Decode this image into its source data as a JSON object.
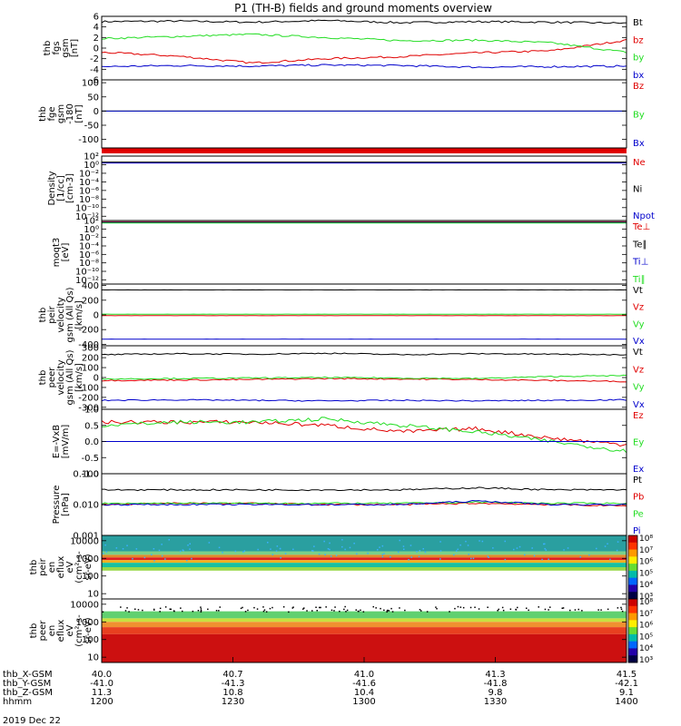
{
  "title": "P1 (TH-B) fields and ground moments overview",
  "date_label": "2019 Dec 22",
  "colors": {
    "black": "#000000",
    "red": "#e00000",
    "green": "#22dd22",
    "blue": "#0000cc"
  },
  "chart_data": [
    {
      "id": "p1",
      "type": "line",
      "ylabel": [
        "thb",
        "fgs",
        "gsm",
        "[nT]"
      ],
      "ylim": [
        -6,
        6
      ],
      "ticks": [
        6,
        4,
        2,
        0,
        -2,
        -4,
        -6
      ],
      "tick_labels": [
        "6",
        "4",
        "2",
        "0",
        "-2",
        "-4",
        "-6"
      ],
      "series": [
        {
          "name": "Bt",
          "color": "black",
          "values": [
            5.0,
            5.1,
            4.9,
            5.2,
            4.8,
            5.0,
            4.9,
            4.7
          ]
        },
        {
          "name": "bz",
          "color": "red",
          "values": [
            -0.8,
            -1.5,
            -2.8,
            -2.0,
            -1.6,
            -0.9,
            -0.5,
            1.5
          ]
        },
        {
          "name": "by",
          "color": "green",
          "values": [
            1.8,
            2.2,
            2.6,
            2.0,
            1.4,
            1.5,
            1.0,
            -0.8
          ]
        },
        {
          "name": "bx",
          "color": "blue",
          "values": [
            -3.5,
            -3.3,
            -3.4,
            -3.2,
            -3.3,
            -3.6,
            -3.5,
            -3.4
          ]
        }
      ]
    },
    {
      "id": "p2",
      "type": "line",
      "ylabel": [
        "thb",
        "fge",
        "gsm",
        "-180",
        "[nT]"
      ],
      "ylim": [
        -130,
        110
      ],
      "ticks": [
        100,
        50,
        0,
        -50,
        -100
      ],
      "tick_labels": [
        "100",
        "50",
        "0",
        "-50",
        "-100"
      ],
      "series": [
        {
          "name": "Bz",
          "color": "red",
          "values": [
            0,
            0,
            0,
            0,
            0,
            0,
            0,
            0
          ]
        },
        {
          "name": "By",
          "color": "green",
          "values": [
            0,
            0,
            0,
            0,
            0,
            0,
            0,
            0
          ]
        },
        {
          "name": "Bx",
          "color": "blue",
          "values": [
            0,
            0,
            0,
            0,
            0,
            0,
            0,
            0
          ]
        }
      ]
    },
    {
      "id": "p4",
      "type": "line",
      "ylabel": [
        "Density",
        "[1/cc]",
        "[cm-3]"
      ],
      "ylim": [
        -13,
        2
      ],
      "ticks": [
        2,
        0,
        -2,
        -4,
        -6,
        -8,
        -10,
        -12
      ],
      "tick_labels": [
        "10²",
        "10⁰",
        "10⁻²",
        "10⁻⁴",
        "10⁻⁶",
        "10⁻⁸",
        "10⁻¹⁰",
        "10⁻¹²"
      ],
      "series": [
        {
          "name": "Ne",
          "color": "red",
          "values": [
            0.5,
            0.5,
            0.5,
            0.5,
            0.5,
            0.5,
            0.5,
            0.5
          ]
        },
        {
          "name": "Ni",
          "color": "black",
          "values": [
            0.6,
            0.6,
            0.6,
            0.6,
            0.6,
            0.6,
            0.6,
            0.6
          ]
        },
        {
          "name": "Npot",
          "color": "blue",
          "values": [
            0.4,
            0.4,
            0.4,
            0.4,
            0.4,
            0.4,
            0.4,
            0.4
          ]
        }
      ]
    },
    {
      "id": "p5",
      "type": "line",
      "ylabel": [
        "moqt3",
        "[eV]"
      ],
      "ylim": [
        -13,
        2
      ],
      "ticks": [
        2,
        0,
        -2,
        -4,
        -6,
        -8,
        -10,
        -12
      ],
      "tick_labels": [
        "10²",
        "10⁰",
        "10⁻²",
        "10⁻⁴",
        "10⁻⁶",
        "10⁻⁸",
        "10⁻¹⁰",
        "10⁻¹²"
      ],
      "series": [
        {
          "name": "Te⊥",
          "color": "red",
          "values": [
            1.7,
            1.7,
            1.7,
            1.7,
            1.7,
            1.7,
            1.7,
            1.7
          ]
        },
        {
          "name": "Te∥",
          "color": "black",
          "values": [
            1.6,
            1.6,
            1.6,
            1.6,
            1.6,
            1.6,
            1.6,
            1.6
          ]
        },
        {
          "name": "Ti⊥",
          "color": "blue",
          "values": [
            1.5,
            1.5,
            1.5,
            1.5,
            1.5,
            1.5,
            1.5,
            1.5
          ]
        },
        {
          "name": "Ti∥",
          "color": "green",
          "values": [
            1.4,
            1.4,
            1.4,
            1.4,
            1.4,
            1.4,
            1.4,
            1.4
          ]
        }
      ]
    },
    {
      "id": "p6",
      "type": "line",
      "ylabel": [
        "thb",
        "peir",
        "velocity",
        "gsm (All Qs)",
        "[km/s]"
      ],
      "ylim": [
        -420,
        420
      ],
      "ticks": [
        400,
        200,
        0,
        -200,
        -400
      ],
      "tick_labels": [
        "400",
        "200",
        "0",
        "-200",
        "-400"
      ],
      "series": [
        {
          "name": "Vt",
          "color": "black",
          "values": [
            340,
            340,
            340,
            340,
            340,
            340,
            340,
            340
          ]
        },
        {
          "name": "Vz",
          "color": "red",
          "values": [
            -10,
            -10,
            -10,
            -10,
            -10,
            -10,
            -10,
            -10
          ]
        },
        {
          "name": "Vy",
          "color": "green",
          "values": [
            10,
            10,
            10,
            10,
            10,
            10,
            10,
            10
          ]
        },
        {
          "name": "Vx",
          "color": "blue",
          "values": [
            -330,
            -330,
            -330,
            -330,
            -330,
            -330,
            -330,
            -330
          ]
        }
      ]
    },
    {
      "id": "p7",
      "type": "line",
      "ylabel": [
        "thb",
        "peer",
        "velocity",
        "gsm (All Qs)",
        "[km/s]"
      ],
      "ylim": [
        -320,
        320
      ],
      "ticks": [
        300,
        200,
        100,
        0,
        -100,
        -200,
        -300
      ],
      "tick_labels": [
        "300",
        "200",
        "100",
        "0",
        "-100",
        "-200",
        "-300"
      ],
      "series": [
        {
          "name": "Vt",
          "color": "black",
          "values": [
            230,
            240,
            235,
            245,
            230,
            240,
            235,
            230
          ]
        },
        {
          "name": "Vz",
          "color": "red",
          "values": [
            -30,
            -25,
            -20,
            -10,
            -15,
            -20,
            -30,
            -40
          ]
        },
        {
          "name": "Vy",
          "color": "green",
          "values": [
            -15,
            -10,
            -5,
            0,
            -5,
            -10,
            10,
            20
          ]
        },
        {
          "name": "Vx",
          "color": "blue",
          "values": [
            -230,
            -225,
            -230,
            -235,
            -230,
            -235,
            -230,
            -225
          ]
        }
      ]
    },
    {
      "id": "p8",
      "type": "line",
      "ylabel": [
        "E=-VxB",
        "[mV/m]"
      ],
      "ylim": [
        -1.0,
        1.0
      ],
      "ticks": [
        1.0,
        0.5,
        0.0,
        -0.5,
        -1.0
      ],
      "tick_labels": [
        "1.0",
        "0.5",
        "0.0",
        "-0.5",
        "-1.0"
      ],
      "series": [
        {
          "name": "Ez",
          "color": "red",
          "values": [
            0.6,
            0.6,
            0.6,
            0.5,
            0.3,
            0.4,
            0.1,
            -0.1
          ]
        },
        {
          "name": "Ey",
          "color": "green",
          "values": [
            0.5,
            0.6,
            0.6,
            0.7,
            0.5,
            0.3,
            0.0,
            -0.3
          ]
        },
        {
          "name": "Ex",
          "color": "blue",
          "values": [
            0,
            0,
            0,
            0,
            0,
            0,
            0,
            0
          ]
        }
      ]
    },
    {
      "id": "p9",
      "type": "line",
      "ylabel": [
        "Pressure",
        "[nPa]"
      ],
      "ylim": [
        -3,
        -1
      ],
      "ticks": [
        -1,
        -2,
        -3
      ],
      "tick_labels": [
        "0.100",
        "0.010",
        "0.001"
      ],
      "series": [
        {
          "name": "Pt",
          "color": "black",
          "values": [
            0.03,
            0.03,
            0.03,
            0.03,
            0.03,
            0.035,
            0.03,
            0.03
          ]
        },
        {
          "name": "Pb",
          "color": "red",
          "values": [
            0.01,
            0.011,
            0.011,
            0.01,
            0.01,
            0.011,
            0.01,
            0.009
          ]
        },
        {
          "name": "Pe",
          "color": "green",
          "values": [
            0.011,
            0.011,
            0.011,
            0.011,
            0.011,
            0.012,
            0.011,
            0.011
          ]
        },
        {
          "name": "Pi",
          "color": "blue",
          "values": [
            0.01,
            0.01,
            0.01,
            0.01,
            0.01,
            0.013,
            0.01,
            0.01
          ]
        }
      ]
    },
    {
      "id": "s1",
      "type": "heatmap",
      "ylabel": [
        "thb",
        "peir",
        "en",
        "eflux",
        "eV",
        "(cm²-s-",
        "sr-eV)"
      ],
      "ylim": [
        0.7,
        4.3
      ],
      "ticks": [
        4,
        3,
        2,
        1
      ],
      "tick_labels": [
        "10000",
        "1000",
        "100",
        "10"
      ],
      "colorbar": {
        "tick_labels": [
          "10⁸",
          "10⁷",
          "10⁶",
          "10⁵",
          "10⁴",
          "10³"
        ],
        "label": "[eV/(cm²-s-sr-eV)] (All Qs)"
      }
    },
    {
      "id": "s2",
      "type": "heatmap",
      "ylabel": [
        "thb",
        "peer",
        "en",
        "eflux",
        "eV",
        "(cm²-s-",
        "sr-eV)"
      ],
      "ylim": [
        0.7,
        4.3
      ],
      "ticks": [
        4,
        3,
        2,
        1
      ],
      "tick_labels": [
        "10000",
        "1000",
        "100",
        "10"
      ],
      "colorbar": {
        "tick_labels": [
          "10⁸",
          "10⁷",
          "10⁶",
          "10⁵",
          "10⁴",
          "10³"
        ],
        "label": "[eV/(cm²-s-sr-eV)] (All Qs)"
      }
    }
  ],
  "xaxis": {
    "row_labels": [
      "thb_X-GSM",
      "thb_Y-GSM",
      "thb_Z-GSM",
      "hhmm"
    ],
    "columns": [
      [
        "40.0",
        "-41.0",
        "11.3",
        "1200"
      ],
      [
        "40.7",
        "-41.3",
        "10.8",
        "1230"
      ],
      [
        "41.0",
        "-41.6",
        "10.4",
        "1300"
      ],
      [
        "41.3",
        "-41.8",
        "9.8",
        "1330"
      ],
      [
        "41.5",
        "-42.1",
        "9.1",
        "1400"
      ]
    ]
  }
}
